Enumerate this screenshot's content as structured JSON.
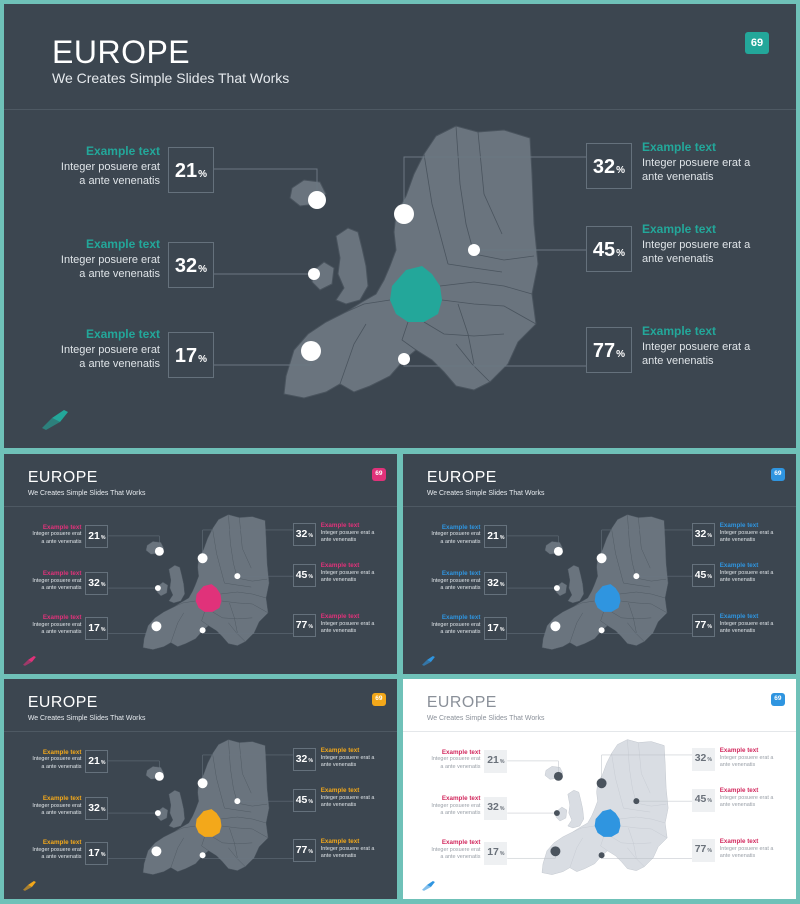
{
  "slides": [
    {
      "title": "EUROPE",
      "subtitle": "We Creates Simple Slides That Works",
      "badge": "69",
      "accent": "#23a79a",
      "theme": "dark"
    },
    {
      "title": "EUROPE",
      "subtitle": "We Creates Simple Slides That Works",
      "badge": "69",
      "accent": "#e0327a",
      "theme": "dark"
    },
    {
      "title": "EUROPE",
      "subtitle": "We Creates Simple Slides That Works",
      "badge": "69",
      "accent": "#2f95e0",
      "theme": "dark"
    },
    {
      "title": "EUROPE",
      "subtitle": "We Creates Simple Slides That Works",
      "badge": "69",
      "accent": "#f3a81a",
      "theme": "dark"
    },
    {
      "title": "EUROPE",
      "subtitle": "We Creates Simple Slides That Works",
      "badge": "69",
      "accent": "#2f95e0",
      "label_color": "#d2295e",
      "theme": "light"
    }
  ],
  "callouts": [
    {
      "heading": "Example text",
      "body": "Integer posuere erat a ante venenatis",
      "value": "21",
      "unit": "%"
    },
    {
      "heading": "Example text",
      "body": "Integer posuere erat a ante venenatis",
      "value": "32",
      "unit": "%"
    },
    {
      "heading": "Example text",
      "body": "Integer posuere erat a ante venenatis",
      "value": "17",
      "unit": "%"
    },
    {
      "heading": "Example text",
      "body": "Integer posuere erat a ante venenatis",
      "value": "32",
      "unit": "%"
    },
    {
      "heading": "Example text",
      "body": "Integer posuere erat a ante venenatis",
      "value": "45",
      "unit": "%"
    },
    {
      "heading": "Example text",
      "body": "Integer posuere erat a ante venenatis",
      "value": "77",
      "unit": "%"
    }
  ],
  "icons": {
    "rocket": "rocket-icon",
    "map": "europe-map",
    "highlight": "germany-highlight"
  }
}
